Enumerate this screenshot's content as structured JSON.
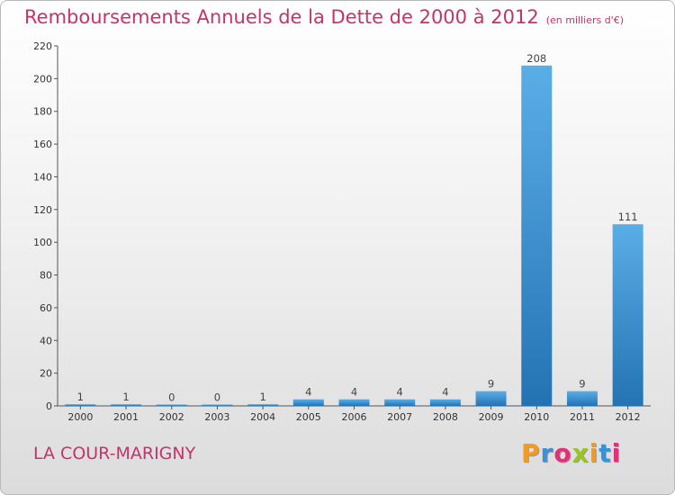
{
  "header": {
    "title": "Remboursements Annuels de la Dette de 2000 à 2012",
    "unit": "(en milliers d'€)"
  },
  "footer": {
    "commune": "LA COUR-MARIGNY",
    "logo": {
      "letters": [
        "P",
        "r",
        "o",
        "x",
        "i",
        "t",
        "i"
      ],
      "colors": [
        "#f39a1f",
        "#3a92d6",
        "#e1317a",
        "#9ac523",
        "#f39a1f",
        "#3a92d6",
        "#e1317a"
      ]
    }
  },
  "colors": {
    "bar_top": "#5aaee6",
    "bar_bottom": "#2373b3",
    "axis": "#555555",
    "title": "#c4336a"
  },
  "chart_data": {
    "type": "bar",
    "categories": [
      "2000",
      "2001",
      "2002",
      "2003",
      "2004",
      "2005",
      "2006",
      "2007",
      "2008",
      "2009",
      "2010",
      "2011",
      "2012"
    ],
    "values": [
      1,
      1,
      0,
      0,
      1,
      4,
      4,
      4,
      4,
      9,
      208,
      9,
      111
    ],
    "ylim": [
      0,
      220
    ],
    "yticks": [
      0,
      20,
      40,
      60,
      80,
      100,
      120,
      140,
      160,
      180,
      200,
      220
    ],
    "grid": false,
    "legend": "none"
  }
}
